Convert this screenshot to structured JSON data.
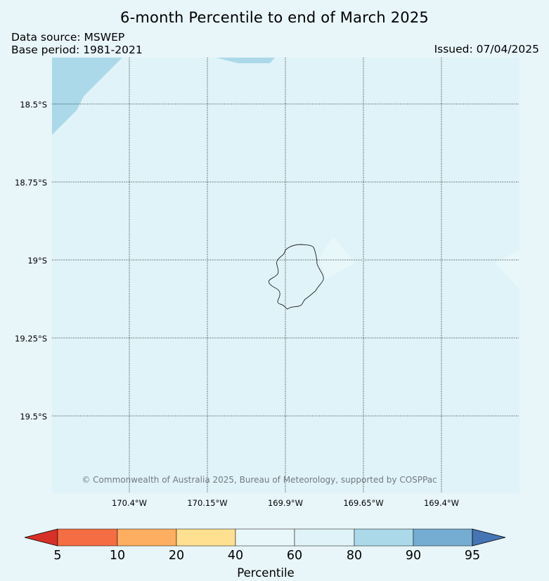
{
  "title": "6-month Percentile to end of March 2025",
  "data_source": "Data source: MSWEP",
  "base_period": "Base period: 1981-2021",
  "issued": "Issued: 07/04/2025",
  "copyright": "© Commonwealth of Australia 2025, Bureau of Meteorology, supported by COSPPac",
  "map": {
    "lat_labels": [
      "18.5°S",
      "18.75°S",
      "19°S",
      "19.25°S",
      "19.5°S"
    ],
    "lon_labels": [
      "170.4°W",
      "170.15°W",
      "169.9°W",
      "169.65°W",
      "169.4°W"
    ],
    "background_color": "#e0f3f8",
    "features": [
      "Niue island outline",
      "higher percentile shading (80-90) in north-west corner and near top"
    ]
  },
  "colorbar": {
    "label": "Percentile",
    "ticks": [
      "5",
      "10",
      "20",
      "40",
      "60",
      "80",
      "90",
      "95"
    ],
    "colors": [
      "#d73027",
      "#f46d43",
      "#fdae61",
      "#fee090",
      "#e8f7f9",
      "#e0f3f8",
      "#abd9e9",
      "#74add1",
      "#4575b4"
    ]
  }
}
